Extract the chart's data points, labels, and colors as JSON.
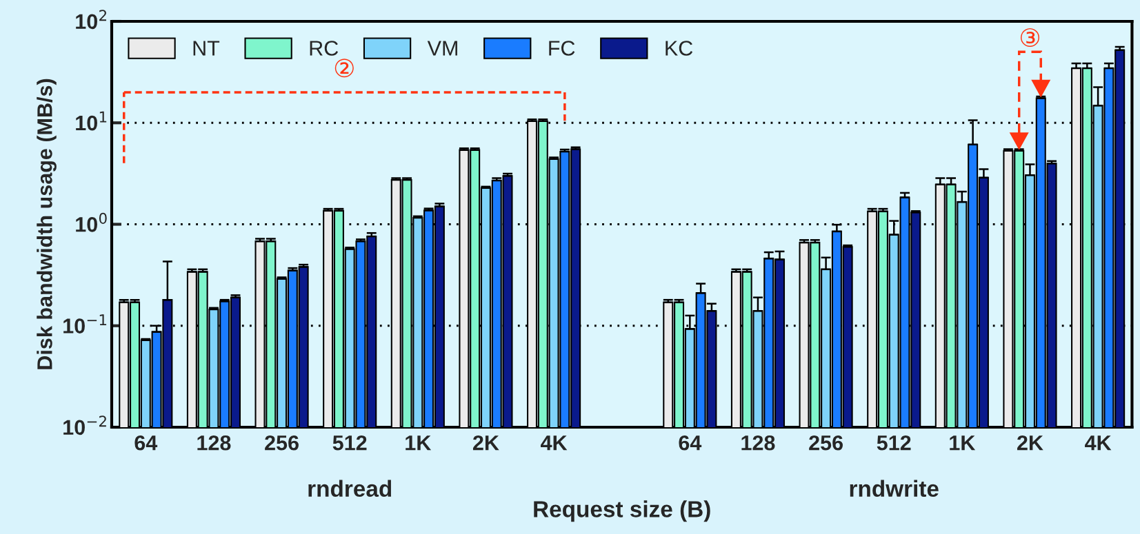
{
  "chart_data": {
    "type": "bar",
    "categories": [
      "64",
      "128",
      "256",
      "512",
      "1K",
      "2K",
      "4K",
      null,
      "64",
      "128",
      "256",
      "512",
      "1K",
      "2K",
      "4K"
    ],
    "xlabel": "Request size (B)",
    "ylabel": "Disk bandwidth usage (MB/s)",
    "log": "y",
    "ylim": [
      0.01,
      100
    ],
    "yticks": [
      {
        "value": 0.01,
        "label": "10$^{−2}$"
      },
      {
        "value": 0.1,
        "label": "10$^{−1}$"
      },
      {
        "value": 1,
        "label": "10$^{0}$"
      },
      {
        "value": 10,
        "label": "10$^{1}$"
      },
      {
        "value": 100,
        "label": "10$^{2}$"
      }
    ],
    "grid": "y",
    "legend": "top left",
    "annotations": [
      "②",
      "③",
      "rndread",
      "rndwrite"
    ],
    "series": [
      {
        "name": "NT",
        "color": "#ebebeb",
        "values": [
          0.17,
          0.34,
          0.68,
          1.36,
          2.74,
          5.4,
          10.4,
          null,
          0.17,
          0.34,
          0.66,
          1.34,
          2.47,
          5.3,
          34.5
        ],
        "errors": [
          [
            0.17,
            0.18
          ],
          [
            0.34,
            0.36
          ],
          [
            0.68,
            0.72
          ],
          [
            1.36,
            1.42
          ],
          [
            2.74,
            2.85
          ],
          [
            5.4,
            5.6
          ],
          [
            10.4,
            10.8
          ],
          null,
          [
            0.17,
            0.18
          ],
          [
            0.34,
            0.36
          ],
          [
            0.66,
            0.7
          ],
          [
            1.34,
            1.42
          ],
          [
            2.47,
            2.85
          ],
          [
            5.3,
            5.5
          ],
          [
            34.5,
            38.6
          ]
        ]
      },
      {
        "name": "RC",
        "color": "#7ff5cc",
        "values": [
          0.17,
          0.34,
          0.68,
          1.36,
          2.74,
          5.4,
          10.4,
          null,
          0.17,
          0.34,
          0.66,
          1.34,
          2.47,
          5.3,
          34.5
        ],
        "errors": [
          [
            0.17,
            0.18
          ],
          [
            0.34,
            0.36
          ],
          [
            0.68,
            0.72
          ],
          [
            1.36,
            1.42
          ],
          [
            2.74,
            2.85
          ],
          [
            5.4,
            5.6
          ],
          [
            10.4,
            10.8
          ],
          null,
          [
            0.17,
            0.18
          ],
          [
            0.34,
            0.36
          ],
          [
            0.66,
            0.7
          ],
          [
            1.34,
            1.42
          ],
          [
            2.47,
            2.85
          ],
          [
            5.3,
            5.5
          ],
          [
            34.5,
            38.6
          ]
        ]
      },
      {
        "name": "VM",
        "color": "#7fd3fa",
        "values": [
          0.072,
          0.145,
          0.29,
          0.57,
          1.16,
          2.28,
          4.4,
          null,
          0.093,
          0.14,
          0.36,
          0.79,
          1.66,
          3.05,
          14.8
        ],
        "errors": [
          [
            0.072,
            0.074
          ],
          [
            0.145,
            0.15
          ],
          [
            0.29,
            0.3
          ],
          [
            0.57,
            0.59
          ],
          [
            1.16,
            1.2
          ],
          [
            2.28,
            2.35
          ],
          [
            4.4,
            4.55
          ],
          null,
          [
            0.093,
            0.126
          ],
          [
            0.14,
            0.19
          ],
          [
            0.36,
            0.47
          ],
          [
            0.79,
            1.08
          ],
          [
            1.66,
            2.1
          ],
          [
            3.05,
            3.9
          ],
          [
            14.8,
            22.5
          ]
        ]
      },
      {
        "name": "FC",
        "color": "#1a7cff",
        "values": [
          0.087,
          0.174,
          0.35,
          0.68,
          1.37,
          2.7,
          5.2,
          null,
          0.21,
          0.46,
          0.85,
          1.84,
          6.1,
          17.5,
          34.5
        ],
        "errors": [
          [
            0.087,
            0.1
          ],
          [
            0.174,
            0.18
          ],
          [
            0.35,
            0.37
          ],
          [
            0.68,
            0.71
          ],
          [
            1.37,
            1.43
          ],
          [
            2.7,
            2.85
          ],
          [
            5.2,
            5.45
          ],
          null,
          [
            0.21,
            0.26
          ],
          [
            0.46,
            0.53
          ],
          [
            0.85,
            0.99
          ],
          [
            1.84,
            2.04
          ],
          [
            6.1,
            10.6
          ],
          [
            17.5,
            18.2
          ],
          [
            34.5,
            38.6
          ]
        ]
      },
      {
        "name": "KC",
        "color": "#0a1a8c",
        "values": [
          0.18,
          0.19,
          0.38,
          0.76,
          1.5,
          3.0,
          5.5,
          null,
          0.14,
          0.45,
          0.6,
          1.31,
          2.88,
          3.97,
          52
        ],
        "errors": [
          [
            0.18,
            0.43
          ],
          [
            0.19,
            0.2
          ],
          [
            0.38,
            0.4
          ],
          [
            0.76,
            0.82
          ],
          [
            1.5,
            1.6
          ],
          [
            3.0,
            3.15
          ],
          [
            5.5,
            5.75
          ],
          null,
          [
            0.14,
            0.165
          ],
          [
            0.45,
            0.54
          ],
          [
            0.6,
            0.62
          ],
          [
            1.31,
            1.35
          ],
          [
            2.88,
            3.5
          ],
          [
            3.97,
            4.2
          ],
          [
            52,
            56
          ]
        ]
      }
    ]
  }
}
